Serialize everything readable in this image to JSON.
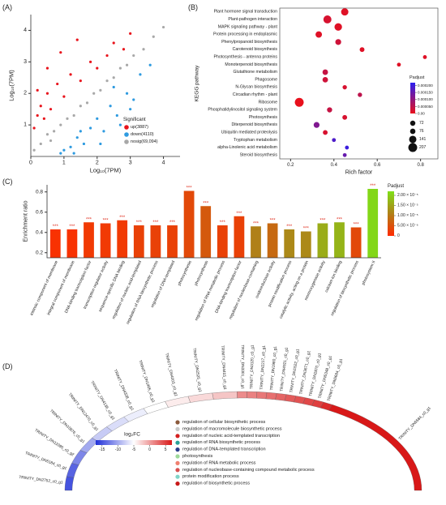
{
  "chart_data": [
    {
      "type": "scatter",
      "panel_label": "(A)",
      "x_label": "Log₁₀(7PM)",
      "y_label": "Log₁₀(7PM)",
      "xlim": [
        0,
        4.5
      ],
      "ylim": [
        0,
        4.5
      ],
      "xticks": [
        0,
        1,
        2,
        3,
        4
      ],
      "yticks": [
        1,
        2,
        3,
        4
      ],
      "legend_title": "Significant",
      "series": [
        {
          "name": "nosig(69,094)",
          "color": "#a8a8a8",
          "x": [
            0.1,
            0.3,
            0.5,
            0.7,
            0.9,
            1.1,
            1.3,
            1.5,
            1.7,
            1.9,
            2.1,
            2.3,
            2.5,
            2.7,
            2.9,
            3.1,
            3.4,
            3.7,
            4.0,
            0.6
          ],
          "values": [
            0.2,
            0.4,
            0.7,
            0.8,
            1.0,
            1.2,
            1.3,
            1.6,
            1.7,
            2.0,
            2.1,
            2.4,
            2.5,
            2.8,
            2.9,
            3.2,
            3.4,
            3.8,
            4.1,
            0.5
          ]
        },
        {
          "name": "down(4110)",
          "color": "#2f9be0",
          "x": [
            0.9,
            1.2,
            1.4,
            1.6,
            1.8,
            2.0,
            2.2,
            2.4,
            2.6,
            2.9,
            3.1,
            3.3,
            3.6,
            1.0,
            1.5,
            2.1,
            2.7,
            3.0,
            1.3,
            2.5
          ],
          "values": [
            0.1,
            0.3,
            0.6,
            0.4,
            0.9,
            1.2,
            0.8,
            1.6,
            1.3,
            2.0,
            1.8,
            2.6,
            2.9,
            0.2,
            0.8,
            0.4,
            1.0,
            1.5,
            0.1,
            2.2
          ]
        },
        {
          "name": "up(3887)",
          "color": "#e8141c",
          "x": [
            0.1,
            0.2,
            0.3,
            0.4,
            0.5,
            0.6,
            0.8,
            1.0,
            1.2,
            1.5,
            1.8,
            2.0,
            2.3,
            2.5,
            2.8,
            3.0,
            0.2,
            0.5,
            0.9,
            1.4
          ],
          "values": [
            0.9,
            1.3,
            1.6,
            1.2,
            2.0,
            1.5,
            2.3,
            1.9,
            2.6,
            2.4,
            3.0,
            2.8,
            3.2,
            3.6,
            3.4,
            3.9,
            2.1,
            2.8,
            3.3,
            3.7
          ]
        }
      ]
    },
    {
      "type": "bubble",
      "panel_label": "(B)",
      "x_label": "Rich factor",
      "y_label": "KEGG pathway",
      "categories": [
        "Plant hormone signal transduction",
        "Plant-pathogen interaction",
        "MAPK signaling pathway - plant",
        "Protein processing in endoplasmic",
        "Phenylpropanoid biosynthesis",
        "Carotenoid biosynthesis",
        "Photosynthesis - antenna proteins",
        "Monoterpenoid biosynthesis",
        "Glutathione metabolism",
        "Phagosome",
        "N-Glycan biosynthesis",
        "Circadian rhythm - plant",
        "Ribosome",
        "Phosphatidylinositol signaling system",
        "Photosynthesis",
        "Diterpenoid biosynthesis",
        "Ubiquitin mediated proteolysis",
        "Tryptophan metabolism",
        "alpha-Linolenic acid metabolism",
        "Steroid biosynthesis"
      ],
      "values": [
        0.45,
        0.37,
        0.42,
        0.33,
        0.42,
        0.53,
        0.82,
        0.7,
        0.36,
        0.36,
        0.45,
        0.52,
        0.24,
        0.38,
        0.45,
        0.32,
        0.36,
        0.4,
        0.46,
        0.45
      ],
      "padjust": [
        1e-05,
        2e-05,
        1e-05,
        1e-05,
        3e-05,
        1e-05,
        1e-05,
        1e-05,
        4e-05,
        3e-05,
        2e-05,
        5e-05,
        0,
        4e-05,
        2e-05,
        0.00012,
        2e-05,
        0.00018,
        0.0002,
        0.00015
      ],
      "counts": [
        140,
        170,
        150,
        110,
        90,
        60,
        40,
        40,
        80,
        80,
        50,
        50,
        207,
        70,
        60,
        90,
        60,
        40,
        40,
        40
      ],
      "xlim": [
        0.15,
        0.88
      ],
      "xticks": [
        0.2,
        0.4,
        0.6,
        0.8
      ],
      "color_title": "Padjust",
      "color_scale": {
        "lim": [
          0,
          0.00022
        ],
        "colors": [
          "#e8101c",
          "#2a1ff0"
        ],
        "ticks": [
          {
            "value": 0.0002,
            "label": "0.000200"
          },
          {
            "value": 0.00015,
            "label": "0.000150"
          },
          {
            "value": 0.0001,
            "label": "0.000100"
          },
          {
            "value": 5e-05,
            "label": "0.000050"
          },
          {
            "value": 0,
            "label": "0.00"
          }
        ]
      },
      "size_legend": [
        72,
        76,
        141,
        207
      ]
    },
    {
      "type": "bar",
      "panel_label": "(C)",
      "y_label": "Enrichment ratio",
      "categories": [
        "intrinsic component of membrane",
        "integral component of membrane",
        "DNA-binding transcription factor",
        "transcription regulator activity",
        "sequence-specific DNA binding",
        "regulation of nucleic acid-templated",
        "regulation of RNA biosynthetic process",
        "regulation of DNA-templated",
        "photosynthesis",
        "photosynthesis",
        "regulation of RNA metabolic process",
        "DNA-binding transcription factor",
        "regulation of nucleobase-containing",
        "oxidoreductase activity",
        "protein modification process",
        "catalytic activity, acting on a protein",
        "monooxygenase activity",
        "calcium ion binding",
        "regulation of biosynthetic process",
        "photosystem II"
      ],
      "values": [
        0.43,
        0.43,
        0.5,
        0.49,
        0.52,
        0.47,
        0.47,
        0.47,
        0.81,
        0.66,
        0.47,
        0.56,
        0.46,
        0.49,
        0.43,
        0.41,
        0.49,
        0.5,
        0.45,
        0.83
      ],
      "significance": [
        "***",
        "***",
        "***",
        "***",
        "***",
        "***",
        "***",
        "***",
        "***",
        "***",
        "***",
        "***",
        "***",
        "***",
        "***",
        "***",
        "***",
        "***",
        "***",
        "***"
      ],
      "padjust": [
        1e-06,
        1e-06,
        2e-06,
        2e-06,
        2e-06,
        3e-06,
        3e-06,
        3e-06,
        4e-06,
        6e-06,
        3e-06,
        3e-06,
        1.1e-05,
        8e-06,
        1.2e-05,
        1.2e-05,
        1.6e-05,
        1.7e-05,
        4e-06,
        2.1e-05
      ],
      "ylim": [
        0.15,
        0.87
      ],
      "yticks": [
        0.2,
        0.4,
        0.6,
        0.8
      ],
      "color_title": "Padjust",
      "color_scale": {
        "lim": [
          0,
          2.2e-05
        ],
        "colors": [
          "#ff2a00",
          "#b08018",
          "#7fe018"
        ],
        "ticks": [
          {
            "value": 2e-05,
            "label": "2.00 × 10⁻⁵"
          },
          {
            "value": 1.5e-05,
            "label": "1.50 × 10⁻⁵"
          },
          {
            "value": 1e-05,
            "label": "1.00 × 10⁻⁵"
          },
          {
            "value": 5e-06,
            "label": "5.00 × 10⁻⁶"
          },
          0
        ]
      }
    },
    {
      "type": "chord",
      "panel_label": "(D)",
      "genes": [
        "TRINITY_DN2752_c0_g1",
        "TRINITY_DN5184_c0_g1",
        "TRINITY_DN11095_c0_g2",
        "TRINITY_DN10876_c0_g1",
        "TRINITY_DN12470_c0_g1",
        "TRINITY_DN4136_c0_g1",
        "TRINITY_DN4338_c0_g1",
        "TRINITY_DN1405_c0_g1",
        "TRINITY_DN4003_c0_g1",
        "TRINITY_DN2525_c0_g1",
        "TRINITY_DN4415_c0_g1",
        "TRINITY_DN3301_c0_g1",
        "TRINITY_DN3120_c0_g1",
        "TRINITY_DN2217_c0_g1",
        "TRINITY_DN1980_c0_g1",
        "TRINITY_DN4921_c0_g1",
        "TRINITY_DN1522_c0_g1",
        "TRINITY_DN3671_c0_g1",
        "TRINITY_DN2870_c0_g1",
        "TRINITY_DN5348_c0_g1",
        "TRINITY_DN5684_c0_g1",
        "TRINITY_DN5584_c0_g1"
      ],
      "log2fc": [
        -15,
        -14,
        -12,
        -10,
        -8,
        -7,
        -6,
        -5,
        -4,
        -3,
        -2,
        1,
        1.5,
        2,
        2.5,
        3,
        3.5,
        4,
        4.5,
        5,
        6,
        7
      ],
      "color_title": "log₂FC",
      "color_scale": {
        "lim": [
          -17,
          7
        ],
        "colors": [
          "#2030d8",
          "#ffffff",
          "#d81818"
        ],
        "ticks": [
          -15,
          -10,
          -5,
          0,
          5
        ]
      },
      "terms": [
        {
          "name": "regulation of cellular biosynthetic process",
          "color": "#8b5a3c"
        },
        {
          "name": "regulation of macromolecule biosynthetic process",
          "color": "#c8c8c8"
        },
        {
          "name": "regulation of nucleic acid-templated transcription",
          "color": "#d42020"
        },
        {
          "name": "regulation of RNA biosynthetic process",
          "color": "#2aa198"
        },
        {
          "name": "regulation of DNA-templated transcription",
          "color": "#2c3e8c"
        },
        {
          "name": "photosynthesis",
          "color": "#9ed99a"
        },
        {
          "name": "regulation of RNA metabolic process",
          "color": "#f08070"
        },
        {
          "name": "regulation of nucleobase-containing compound metabolic process",
          "color": "#d85050"
        },
        {
          "name": "protein modification process",
          "color": "#7fd4c8"
        },
        {
          "name": "regulation of biosynthetic process",
          "color": "#c81818"
        }
      ]
    }
  ]
}
